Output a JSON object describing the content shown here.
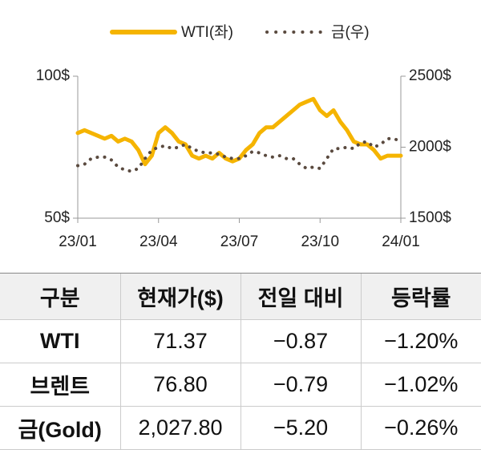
{
  "chart_data": {
    "type": "line",
    "x": [
      0,
      0.25,
      0.5,
      0.75,
      1,
      1.25,
      1.5,
      1.75,
      2,
      2.25,
      2.5,
      2.75,
      3,
      3.25,
      3.5,
      3.75,
      4,
      4.25,
      4.5,
      4.75,
      5,
      5.25,
      5.5,
      5.75,
      6,
      6.25,
      6.5,
      6.75,
      7,
      7.25,
      7.5,
      7.75,
      8,
      8.25,
      8.5,
      8.75,
      9,
      9.25,
      9.5,
      9.75,
      10,
      10.25,
      10.5,
      10.75,
      11,
      11.25,
      11.5,
      11.75,
      12
    ],
    "xlim": [
      0,
      12
    ],
    "xticks": [
      {
        "value": 0,
        "label": "23/01"
      },
      {
        "value": 3,
        "label": "23/04"
      },
      {
        "value": 6,
        "label": "23/07"
      },
      {
        "value": 9,
        "label": "23/10"
      },
      {
        "value": 12,
        "label": "24/01"
      }
    ],
    "ylim": [
      50,
      100
    ],
    "yticks": [
      {
        "value": 50,
        "label": "50$"
      },
      {
        "value": 100,
        "label": "100$"
      }
    ],
    "y2lim": [
      1500,
      2500
    ],
    "y2ticks": [
      {
        "value": 1500,
        "label": "1500$"
      },
      {
        "value": 2000,
        "label": "2000$"
      },
      {
        "value": 2500,
        "label": "2500$"
      }
    ],
    "series": [
      {
        "name": "WTI(좌)",
        "color": "#f5b400",
        "style": "solid",
        "values": [
          80,
          81,
          80,
          79,
          78,
          79,
          77,
          78,
          77,
          74,
          69,
          72,
          80,
          82,
          80,
          77,
          76,
          72,
          71,
          72,
          71,
          73,
          71,
          70,
          71,
          74,
          76,
          80,
          82,
          82,
          84,
          86,
          88,
          90,
          91,
          92,
          88,
          86,
          88,
          84,
          81,
          77,
          76,
          76,
          74,
          71,
          72,
          72,
          72
        ]
      },
      {
        "name": "금(우)",
        "color": "#5a4a3f",
        "style": "dotted",
        "axis": "y2",
        "values": [
          1870,
          1880,
          1920,
          1930,
          1930,
          1910,
          1860,
          1840,
          1830,
          1850,
          1920,
          1980,
          2000,
          2010,
          1990,
          2000,
          2020,
          1990,
          1970,
          1960,
          1960,
          1950,
          1930,
          1920,
          1920,
          1940,
          1970,
          1960,
          1940,
          1930,
          1940,
          1920,
          1920,
          1880,
          1850,
          1860,
          1850,
          1920,
          1990,
          1990,
          2000,
          1990,
          2030,
          2040,
          2000,
          2020,
          2060,
          2060,
          2040
        ]
      }
    ]
  },
  "table": {
    "header": [
      "구분",
      "현재가($)",
      "전일 대비",
      "등락률"
    ],
    "rows": [
      [
        "WTI",
        "71.37",
        "−0.87",
        "−1.20%"
      ],
      [
        "브렌트",
        "76.80",
        "−0.79",
        "−1.02%"
      ],
      [
        "금(Gold)",
        "2,027.80",
        "−5.20",
        "−0.26%"
      ]
    ]
  }
}
